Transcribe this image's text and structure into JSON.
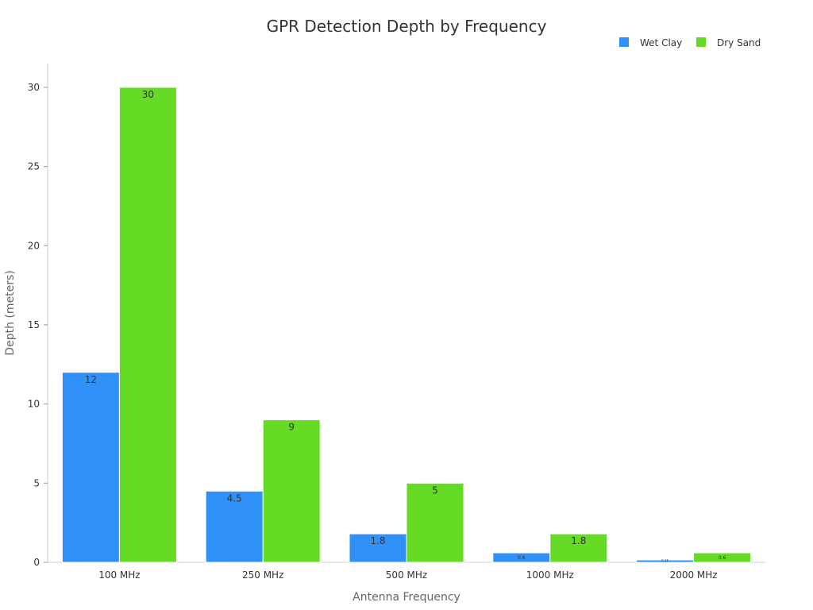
{
  "chart_data": {
    "type": "bar",
    "title": "GPR Detection Depth by Frequency",
    "xlabel": "Antenna Frequency",
    "ylabel": "Depth (meters)",
    "categories": [
      "100 MHz",
      "250 MHz",
      "500 MHz",
      "1000 MHz",
      "2000 MHz"
    ],
    "series": [
      {
        "name": "Wet Clay",
        "color": "#2f91f7",
        "values": [
          12,
          4.5,
          1.8,
          0.6,
          0.15
        ]
      },
      {
        "name": "Dry Sand",
        "color": "#66db26",
        "values": [
          30,
          9,
          5,
          1.8,
          0.6
        ]
      }
    ],
    "ylim": [
      0,
      31.5
    ],
    "yticks": [
      0,
      5,
      10,
      15,
      20,
      25,
      30
    ],
    "legend_position": "top-right",
    "grid": false
  }
}
